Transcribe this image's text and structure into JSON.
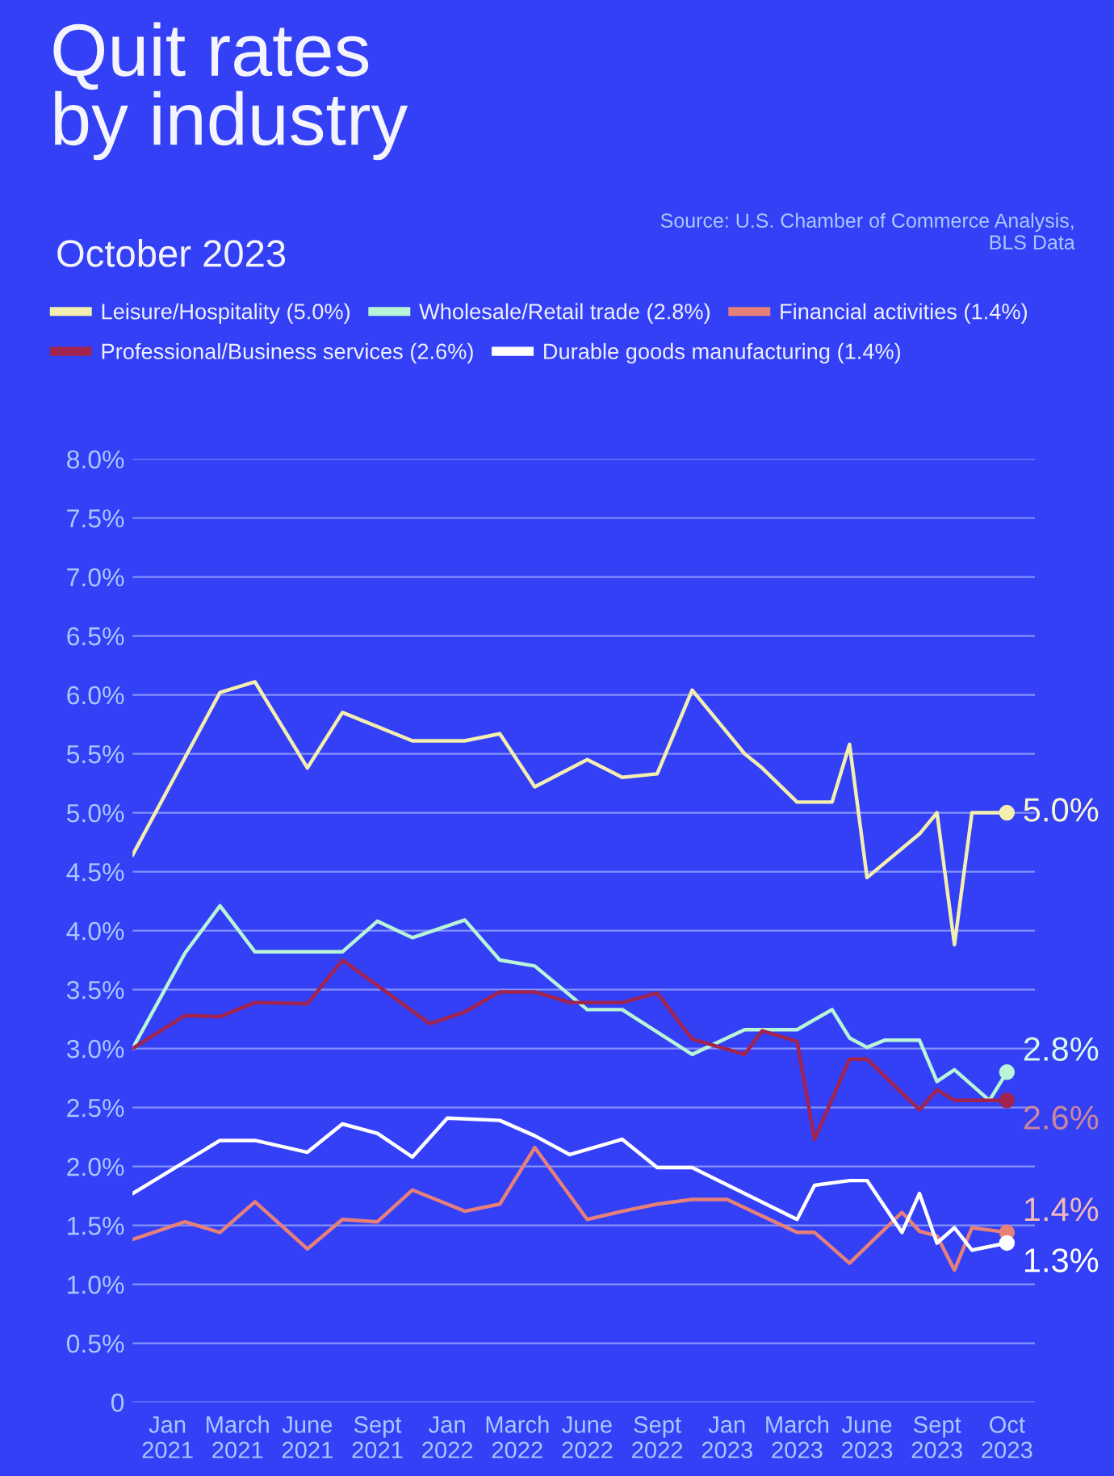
{
  "chart_data": {
    "type": "line",
    "title": "Quit rates\nby industry",
    "subtitle": "October 2023",
    "categories": [
      null,
      null,
      "Jan\n2021",
      null,
      null,
      null,
      "March\n2021",
      null,
      null,
      null,
      "June\n2021",
      null,
      null,
      null,
      "Sept\n2021",
      null,
      null,
      null,
      "Jan\n2022",
      null,
      null,
      null,
      "March\n2022",
      null,
      null,
      null,
      "June\n2022",
      null,
      null,
      null,
      "Sept\n2022",
      null,
      null,
      null,
      "Jan\n2023",
      null,
      null,
      null,
      "March\n2023",
      null,
      null,
      null,
      "June\n2023",
      null,
      null,
      null,
      "Sept\n2023",
      null,
      null,
      null,
      "Oct\n2023"
    ],
    "ylim": [
      0,
      8.0
    ],
    "yticks": [
      {
        "value": 0,
        "label": "0"
      },
      {
        "value": 0.5,
        "label": "0.5%"
      },
      {
        "value": 1.0,
        "label": "1.0%"
      },
      {
        "value": 1.5,
        "label": "1.5%"
      },
      {
        "value": 2.0,
        "label": "2.0%"
      },
      {
        "value": 2.5,
        "label": "2.5%"
      },
      {
        "value": 3.0,
        "label": "3.0%"
      },
      {
        "value": 3.5,
        "label": "3.5%"
      },
      {
        "value": 4.0,
        "label": "4.0%"
      },
      {
        "value": 4.5,
        "label": "4.5%"
      },
      {
        "value": 5.0,
        "label": "5.0%"
      },
      {
        "value": 5.5,
        "label": "5.5%"
      },
      {
        "value": 6.0,
        "label": "6.0%"
      },
      {
        "value": 6.5,
        "label": "6.5%"
      },
      {
        "value": 7.0,
        "label": "7.0%"
      },
      {
        "value": 7.5,
        "label": "7.5%"
      },
      {
        "value": 8.0,
        "label": "8.0%"
      }
    ],
    "grid": "y",
    "legend": "top",
    "marker": "none",
    "line_style": "solid",
    "series": [
      {
        "name": "Leisure/Hospitality (5.0%)",
        "color": "#f4eeb0",
        "values": [
          4.64,
          null,
          null,
          null,
          null,
          6.02,
          null,
          6.11,
          null,
          null,
          5.38,
          null,
          5.85,
          null,
          null,
          null,
          5.61,
          null,
          null,
          5.61,
          null,
          5.67,
          null,
          5.22,
          null,
          null,
          5.45,
          null,
          5.3,
          null,
          5.33,
          null,
          6.04,
          null,
          null,
          5.5,
          5.38,
          null,
          5.09,
          null,
          5.09,
          5.58,
          4.45,
          null,
          null,
          4.82,
          5.0,
          3.88,
          5.0,
          null,
          5.0
        ]
      },
      {
        "name": "Wholesale/Retail trade (2.8%)",
        "color": "#b8f5d8",
        "values": [
          3.0,
          null,
          null,
          3.81,
          null,
          4.21,
          null,
          3.82,
          null,
          null,
          null,
          null,
          3.82,
          null,
          4.08,
          null,
          3.94,
          null,
          null,
          4.09,
          null,
          3.75,
          null,
          3.7,
          null,
          null,
          3.33,
          null,
          3.33,
          null,
          null,
          null,
          2.95,
          null,
          null,
          3.16,
          null,
          null,
          3.16,
          null,
          3.33,
          3.09,
          3.01,
          3.07,
          null,
          3.07,
          2.72,
          2.82,
          null,
          2.56,
          2.8
        ]
      },
      {
        "name": "Financial activities (1.4%)",
        "color": "#e8807a",
        "values": [
          1.38,
          null,
          null,
          1.53,
          null,
          1.44,
          null,
          1.7,
          null,
          null,
          1.3,
          null,
          1.55,
          null,
          1.53,
          null,
          1.8,
          null,
          null,
          1.62,
          null,
          1.68,
          null,
          2.16,
          null,
          null,
          1.55,
          null,
          1.62,
          null,
          1.68,
          null,
          1.72,
          null,
          1.72,
          null,
          null,
          null,
          1.44,
          1.44,
          null,
          1.18,
          null,
          null,
          1.61,
          1.45,
          1.41,
          1.12,
          1.48,
          null,
          1.44
        ]
      },
      {
        "name": "Professional/Business services (2.6%)",
        "color": "#a3234f",
        "values": [
          3.0,
          null,
          null,
          3.28,
          null,
          3.27,
          null,
          3.39,
          null,
          null,
          3.38,
          null,
          3.75,
          null,
          null,
          null,
          null,
          3.21,
          null,
          3.31,
          null,
          3.48,
          null,
          3.48,
          null,
          3.39,
          null,
          null,
          3.39,
          null,
          3.47,
          null,
          3.08,
          null,
          null,
          2.95,
          3.15,
          null,
          3.06,
          2.23,
          null,
          2.91,
          2.91,
          null,
          null,
          2.48,
          2.65,
          2.56,
          null,
          null,
          2.56
        ]
      },
      {
        "name": "Durable goods manufacturing (1.4%)",
        "color": "#ffffff",
        "values": [
          1.77,
          null,
          null,
          null,
          null,
          2.22,
          null,
          2.22,
          null,
          null,
          2.12,
          null,
          2.36,
          null,
          2.28,
          null,
          2.08,
          null,
          2.41,
          null,
          null,
          2.39,
          null,
          2.26,
          null,
          2.1,
          null,
          null,
          2.23,
          null,
          1.99,
          null,
          1.99,
          null,
          null,
          null,
          null,
          null,
          1.55,
          1.84,
          null,
          1.88,
          1.88,
          null,
          1.44,
          1.77,
          1.35,
          1.48,
          1.29,
          null,
          1.35
        ]
      }
    ],
    "annotations": [
      {
        "text": "5.0%",
        "x": "Oct\n2023",
        "y": 5.0
      },
      {
        "text": "2.8%",
        "x": "Oct\n2023",
        "y": 2.8
      },
      {
        "text": "1.4%",
        "x": "Oct\n2023",
        "y": 1.44
      },
      {
        "text": "2.6%",
        "x": "Oct\n2023",
        "y": 2.56
      },
      {
        "text": "1.3%",
        "x": "Oct\n2023",
        "y": 1.35
      },
      "Source: U.S. Chamber of Commerce Analysis,\nBLS Data"
    ]
  }
}
